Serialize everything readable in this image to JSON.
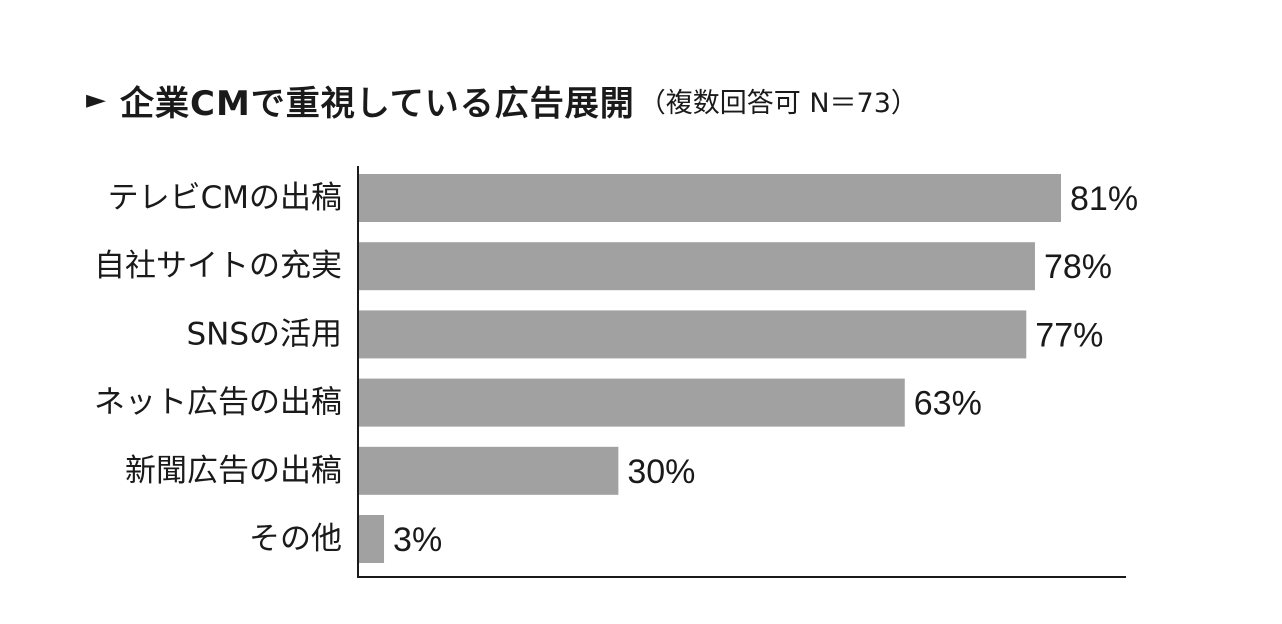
{
  "title": {
    "marker": "►",
    "main": "企業CMで重視している広告展開",
    "sub": "（複数回答可 N＝73）"
  },
  "colors": {
    "bar": "#a0a1a0",
    "axis": "#1a1a1a",
    "text": "#1a1a1a"
  },
  "chart_data": {
    "type": "bar",
    "orientation": "horizontal",
    "title": "企業CMで重視している広告展開",
    "subtitle": "（複数回答可 N＝73）",
    "categories": [
      "テレビCMの出稿",
      "自社サイトの充実",
      "SNSの活用",
      "ネット広告の出稿",
      "新聞広告の出稿",
      "その他"
    ],
    "values": [
      81,
      78,
      77,
      63,
      30,
      3
    ],
    "value_labels": [
      "81%",
      "78%",
      "77%",
      "63%",
      "30%",
      "3%"
    ],
    "xlim": [
      0,
      100
    ],
    "grid": false,
    "legend": "none"
  }
}
